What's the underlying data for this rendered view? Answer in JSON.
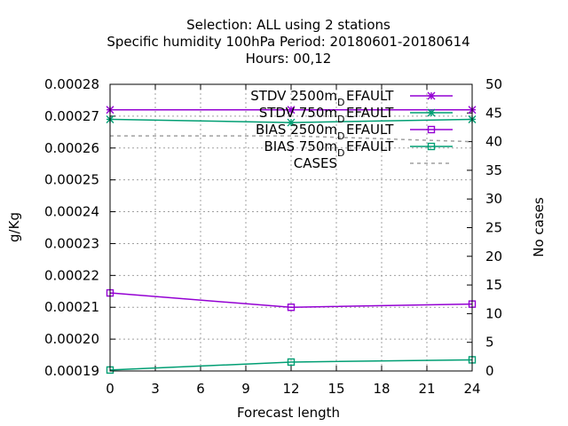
{
  "chart_data": {
    "type": "line",
    "title_lines": [
      "Selection: ALL using     2 stations",
      "Specific humidity 100hPa   Period: 20180601-20180614",
      "Hours:  00,12"
    ],
    "xlabel": "Forecast length",
    "ylabel": "g/Kg",
    "y2label": "No cases",
    "xlim": [
      0,
      24
    ],
    "ylim": [
      0.00019,
      0.00028
    ],
    "y2lim": [
      0,
      50
    ],
    "xticks": [
      "0",
      "3",
      "6",
      "9",
      "12",
      "15",
      "18",
      "21",
      "24"
    ],
    "yticks": [
      "0.00019",
      "0.00020",
      "0.00021",
      "0.00022",
      "0.00023",
      "0.00024",
      "0.00025",
      "0.00026",
      "0.00027",
      "0.00028"
    ],
    "y2ticks": [
      "0",
      "5",
      "10",
      "15",
      "20",
      "25",
      "30",
      "35",
      "40",
      "45",
      "50"
    ],
    "grid": true,
    "legend_position": "top-right",
    "series": [
      {
        "name": "STDV 2500m",
        "name_sub": "D",
        "name_rest": "EFAULT",
        "axis": "y",
        "marker": "star",
        "color": "#9400d3",
        "x": [
          0,
          12,
          24
        ],
        "y": [
          0.000272,
          0.000272,
          0.000272
        ]
      },
      {
        "name": "STDV 750m",
        "name_sub": "D",
        "name_rest": "EFAULT",
        "axis": "y",
        "marker": "star",
        "color": "#009e73",
        "x": [
          0,
          12,
          24
        ],
        "y": [
          0.000269,
          0.000268,
          0.000269
        ]
      },
      {
        "name": "BIAS 2500m",
        "name_sub": "D",
        "name_rest": "EFAULT",
        "axis": "y",
        "marker": "square",
        "color": "#9400d3",
        "x": [
          0,
          12,
          24
        ],
        "y": [
          0.0002145,
          0.00021,
          0.000211
        ]
      },
      {
        "name": "BIAS 750m",
        "name_sub": "D",
        "name_rest": "EFAULT",
        "axis": "y",
        "marker": "square",
        "color": "#009e73",
        "x": [
          0,
          12,
          24
        ],
        "y": [
          0.0001903,
          0.0001928,
          0.0001935
        ]
      },
      {
        "name": "CASES",
        "name_sub": "",
        "name_rest": "",
        "axis": "y2",
        "marker": "none",
        "dashed": true,
        "color": "#a0a0a0",
        "x": [
          0,
          12,
          24
        ],
        "y": [
          41,
          41,
          40
        ]
      }
    ]
  }
}
